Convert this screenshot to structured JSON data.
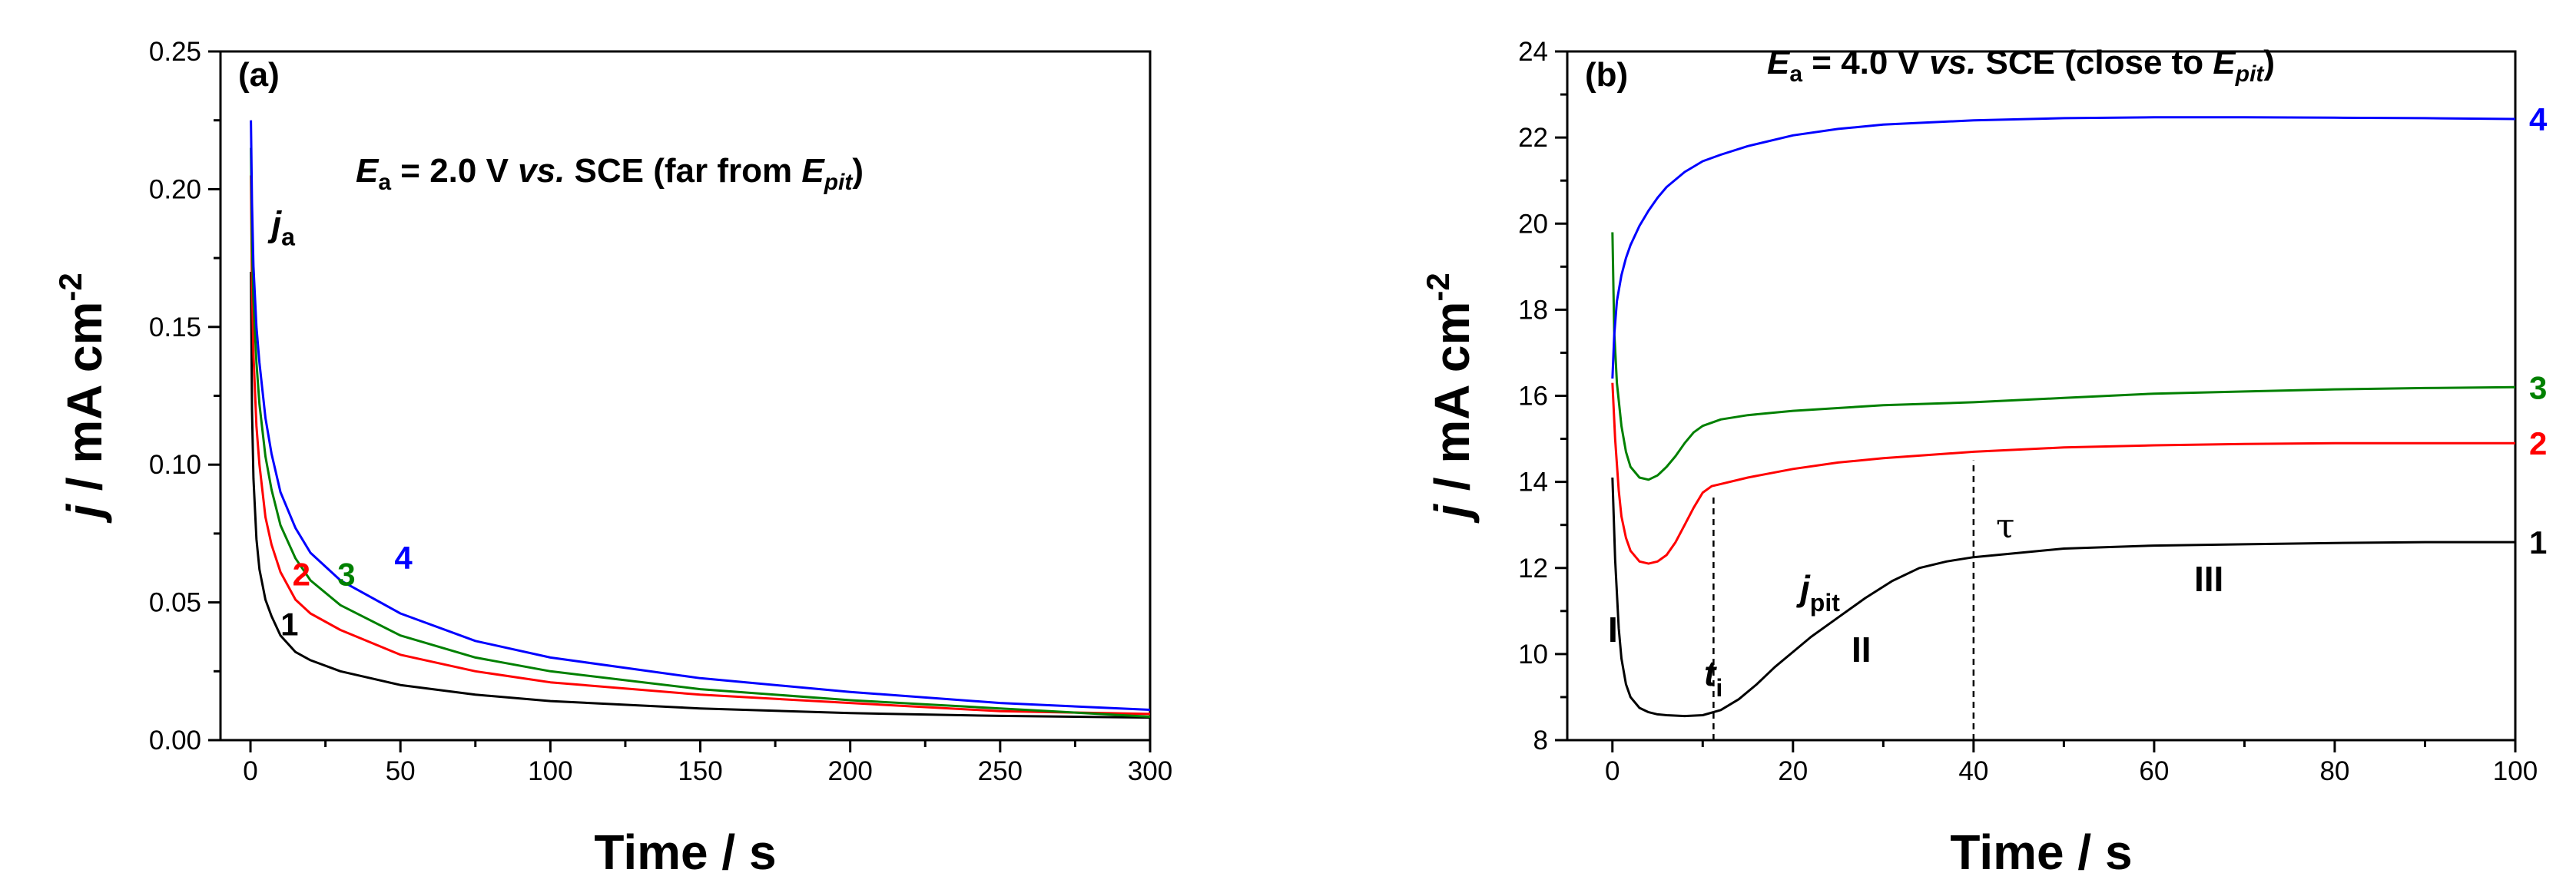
{
  "chart_data": [
    {
      "type": "line",
      "panel_label": "(a)",
      "condition": {
        "prefix": "E",
        "prefix_sub": "a",
        "middle": " = 2.0 V ",
        "vs": "vs.",
        "suffix": " SCE (far from ",
        "e_pit": "E",
        "e_pit_sub": "pit",
        "close": ")"
      },
      "xlabel": "Time / s",
      "ylabel": {
        "j": "j",
        "unit": " / mA cm",
        "exp": "-2"
      },
      "xlim": [
        -10,
        300
      ],
      "ylim": [
        0,
        0.25
      ],
      "xticks": [
        "0",
        "50",
        "100",
        "150",
        "200",
        "250",
        "300"
      ],
      "yticks": [
        "0.00",
        "0.05",
        "0.10",
        "0.15",
        "0.20",
        "0.25"
      ],
      "annotation": {
        "j": "j",
        "sub": "a",
        "x": 7,
        "y": 0.183
      },
      "series": [
        {
          "name": "1",
          "color": "#000000",
          "label_pos": [
            10,
            0.042
          ],
          "x": [
            0.15,
            0.5,
            1,
            2,
            3,
            5,
            7,
            10,
            15,
            20,
            30,
            50,
            75,
            100,
            150,
            200,
            250,
            300
          ],
          "values": [
            0.17,
            0.12,
            0.095,
            0.073,
            0.062,
            0.051,
            0.045,
            0.038,
            0.032,
            0.029,
            0.025,
            0.02,
            0.0165,
            0.0142,
            0.0115,
            0.0098,
            0.0088,
            0.0082
          ]
        },
        {
          "name": "2",
          "color": "#ff0000",
          "label_pos": [
            14,
            0.06
          ],
          "x": [
            0.15,
            0.5,
            1,
            2,
            3,
            5,
            7,
            10,
            15,
            20,
            30,
            50,
            75,
            100,
            150,
            200,
            250,
            300
          ],
          "values": [
            0.205,
            0.165,
            0.14,
            0.114,
            0.1,
            0.081,
            0.071,
            0.061,
            0.051,
            0.046,
            0.04,
            0.031,
            0.025,
            0.021,
            0.0165,
            0.0135,
            0.0105,
            0.0095
          ]
        },
        {
          "name": "3",
          "color": "#008000",
          "label_pos": [
            29,
            0.06
          ],
          "x": [
            0.15,
            0.5,
            1,
            2,
            3,
            5,
            7,
            10,
            15,
            20,
            30,
            50,
            75,
            100,
            150,
            200,
            250,
            300
          ],
          "values": [
            0.215,
            0.18,
            0.16,
            0.137,
            0.122,
            0.103,
            0.091,
            0.078,
            0.066,
            0.058,
            0.049,
            0.038,
            0.03,
            0.025,
            0.0185,
            0.0145,
            0.0115,
            0.0085
          ]
        },
        {
          "name": "4",
          "color": "#0000ff",
          "label_pos": [
            48,
            0.066
          ],
          "x": [
            0.15,
            0.5,
            1,
            2,
            3,
            5,
            7,
            10,
            15,
            20,
            30,
            50,
            75,
            100,
            150,
            200,
            250,
            300
          ],
          "values": [
            0.225,
            0.195,
            0.172,
            0.15,
            0.137,
            0.117,
            0.104,
            0.09,
            0.077,
            0.068,
            0.058,
            0.046,
            0.036,
            0.03,
            0.0225,
            0.0175,
            0.0135,
            0.011
          ]
        }
      ]
    },
    {
      "type": "line",
      "panel_label": "(b)",
      "condition": {
        "prefix": "E",
        "prefix_sub": "a",
        "middle": " = 4.0 V ",
        "vs": "vs.",
        "suffix": " SCE (close to ",
        "e_pit": "E",
        "e_pit_sub": "pit",
        "close": ")"
      },
      "xlabel": "Time / s",
      "ylabel": {
        "j": "j",
        "unit": " / mA cm",
        "exp": "-2"
      },
      "xlim": [
        -5,
        100
      ],
      "ylim": [
        8,
        24
      ],
      "xticks": [
        "0",
        "20",
        "40",
        "60",
        "80",
        "100"
      ],
      "yticks": [
        "8",
        "10",
        "12",
        "14",
        "16",
        "18",
        "20",
        "22",
        "24"
      ],
      "annotations": {
        "region_1": "I",
        "region_2": "II",
        "region_3": "III",
        "t_i": {
          "t": "t",
          "sub": "i",
          "x": 11.2
        },
        "j_pit": {
          "j": "j",
          "sub": "pit"
        },
        "tau": {
          "symbol": "τ",
          "x": 40
        }
      },
      "series": [
        {
          "name": "1",
          "color": "#000000",
          "x": [
            0,
            0.3,
            0.7,
            1,
            1.5,
            2,
            3,
            4,
            5,
            6,
            8,
            10,
            12,
            14,
            16,
            18,
            20,
            22,
            25,
            28,
            31,
            34,
            37,
            40,
            45,
            50,
            60,
            70,
            80,
            90,
            100
          ],
          "values": [
            14.1,
            12.2,
            10.6,
            9.9,
            9.3,
            9.0,
            8.75,
            8.65,
            8.6,
            8.58,
            8.56,
            8.58,
            8.7,
            8.95,
            9.3,
            9.7,
            10.05,
            10.4,
            10.85,
            11.3,
            11.7,
            12.0,
            12.15,
            12.25,
            12.35,
            12.45,
            12.52,
            12.55,
            12.58,
            12.6,
            12.6
          ]
        },
        {
          "name": "2",
          "color": "#ff0000",
          "x": [
            0,
            0.3,
            0.7,
            1,
            1.5,
            2,
            3,
            4,
            5,
            6,
            7,
            8,
            9,
            10,
            11,
            12,
            15,
            20,
            25,
            30,
            40,
            50,
            60,
            70,
            80,
            90,
            100
          ],
          "values": [
            16.3,
            15.0,
            13.8,
            13.2,
            12.7,
            12.4,
            12.15,
            12.1,
            12.15,
            12.3,
            12.6,
            13.0,
            13.4,
            13.75,
            13.9,
            13.95,
            14.1,
            14.3,
            14.45,
            14.55,
            14.7,
            14.8,
            14.85,
            14.88,
            14.9,
            14.9,
            14.9
          ]
        },
        {
          "name": "3",
          "color": "#008000",
          "x": [
            0,
            0.2,
            0.5,
            1,
            1.5,
            2,
            3,
            4,
            5,
            6,
            7,
            8,
            9,
            10,
            12,
            15,
            20,
            30,
            40,
            50,
            60,
            70,
            80,
            90,
            100
          ],
          "values": [
            19.8,
            17.5,
            16.3,
            15.3,
            14.7,
            14.35,
            14.1,
            14.05,
            14.15,
            14.35,
            14.6,
            14.9,
            15.15,
            15.3,
            15.45,
            15.55,
            15.65,
            15.78,
            15.85,
            15.95,
            16.05,
            16.1,
            16.15,
            16.18,
            16.2
          ]
        },
        {
          "name": "4",
          "color": "#0000ff",
          "x": [
            0,
            0.2,
            0.5,
            1,
            1.5,
            2,
            3,
            4,
            5,
            6,
            8,
            10,
            12,
            15,
            20,
            25,
            30,
            40,
            50,
            60,
            70,
            80,
            90,
            100
          ],
          "values": [
            16.4,
            17.4,
            18.2,
            18.8,
            19.2,
            19.5,
            19.95,
            20.3,
            20.6,
            20.85,
            21.2,
            21.45,
            21.6,
            21.8,
            22.05,
            22.2,
            22.3,
            22.4,
            22.45,
            22.47,
            22.47,
            22.46,
            22.45,
            22.43
          ]
        }
      ]
    }
  ]
}
